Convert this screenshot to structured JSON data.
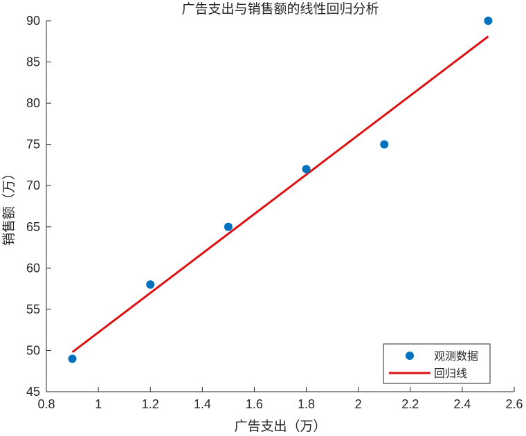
{
  "chart_data": {
    "type": "scatter",
    "title": "广告支出与销售额的线性回归分析",
    "xlabel": "广告支出（万）",
    "ylabel": "销售额（万）",
    "xlim": [
      0.8,
      2.6
    ],
    "ylim": [
      45,
      90
    ],
    "xticks": [
      0.8,
      1,
      1.2,
      1.4,
      1.6,
      1.8,
      2,
      2.2,
      2.4,
      2.6
    ],
    "xtick_labels": [
      "0.8",
      "1",
      "1.2",
      "1.4",
      "1.6",
      "1.8",
      "2",
      "2.2",
      "2.4",
      "2.6"
    ],
    "yticks": [
      45,
      50,
      55,
      60,
      65,
      70,
      75,
      80,
      85,
      90
    ],
    "ytick_labels": [
      "45",
      "50",
      "55",
      "60",
      "65",
      "70",
      "75",
      "80",
      "85",
      "90"
    ],
    "grid": false,
    "legend_position": "bottom-right",
    "series": [
      {
        "name": "观测数据",
        "kind": "scatter",
        "color": "#0072BD",
        "x": [
          0.9,
          1.2,
          1.5,
          1.8,
          2.1,
          2.5
        ],
        "y": [
          49,
          58,
          65,
          72,
          75,
          90
        ]
      },
      {
        "name": "回归线",
        "kind": "line",
        "color": "#DD1111",
        "x": [
          0.9,
          2.5
        ],
        "y": [
          49.8,
          88.1
        ]
      }
    ]
  }
}
